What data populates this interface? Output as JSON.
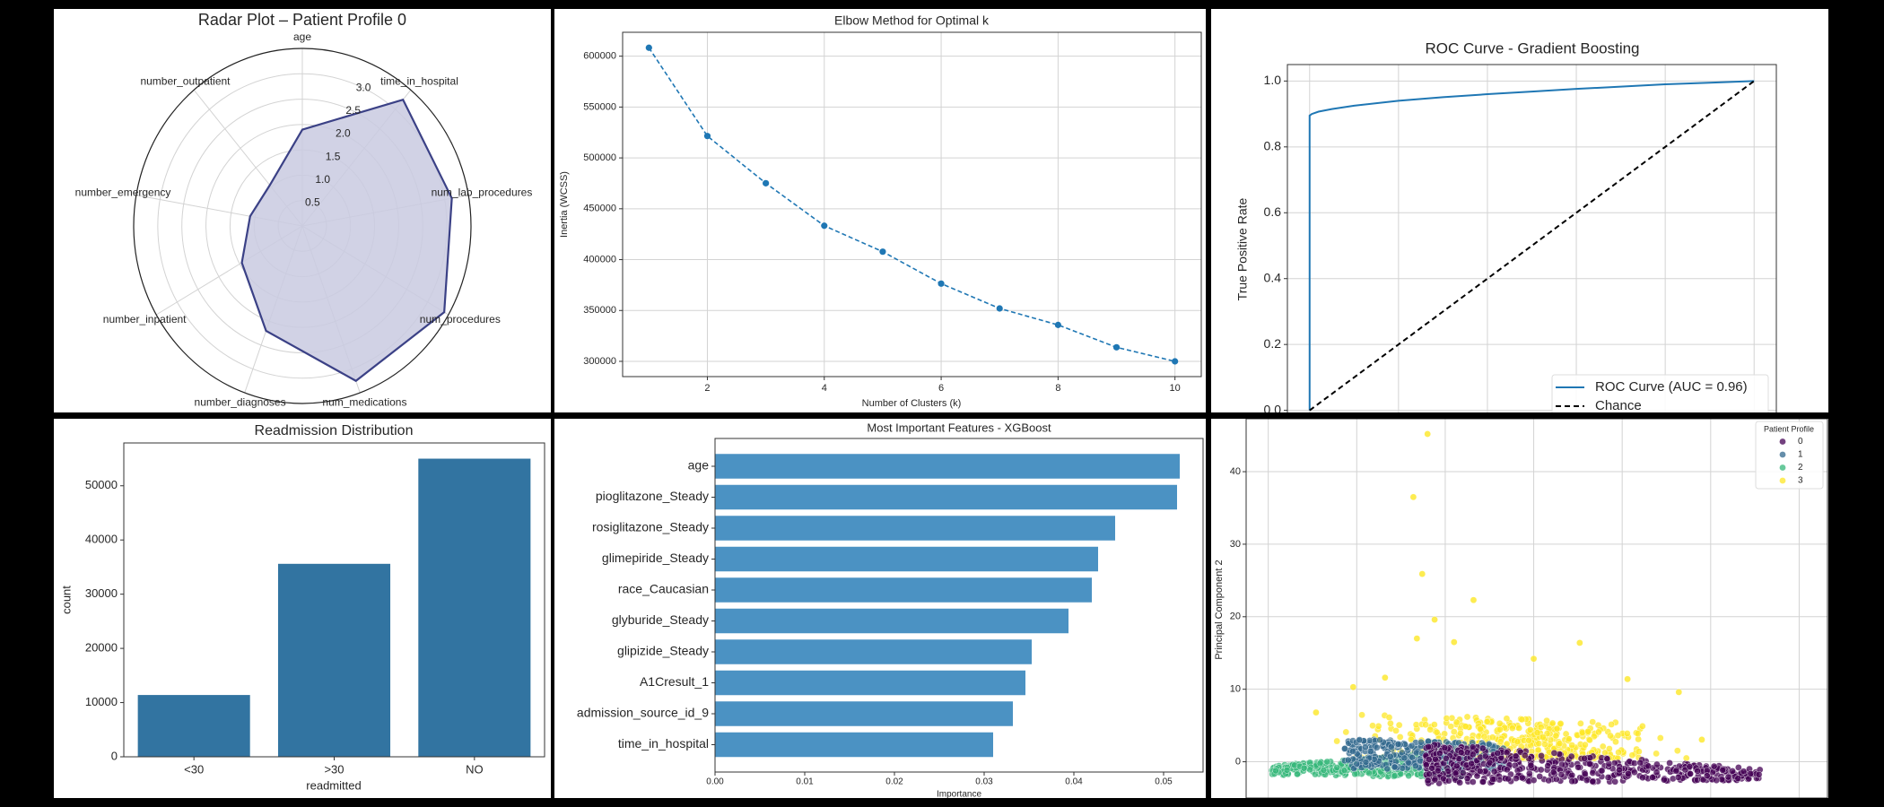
{
  "colors": {
    "background": "#000000",
    "panel": "#ffffff",
    "grid": "#d0d0d0"
  },
  "chart_data": [
    {
      "type": "radar",
      "title": "Radar Plot – Patient Profile 0",
      "axes": [
        "age",
        "time_in_hospital",
        "num_lab_procedures",
        "num_procedures",
        "num_medications",
        "number_diagnoses",
        "number_inpatient",
        "number_emergency",
        "number_outpatient"
      ],
      "values": [
        1.9,
        3.25,
        3.15,
        3.4,
        3.25,
        2.2,
        1.45,
        1.1,
        1.05
      ],
      "r_ticks": [
        "0.5",
        "1.0",
        "1.5",
        "2.0",
        "2.5",
        "3.0"
      ],
      "r_tick_values": [
        0.5,
        1.0,
        1.5,
        2.0,
        2.5,
        3.0
      ],
      "rlim": [
        0,
        3.5
      ],
      "fill_color": "#c9cae0",
      "line_color": "#3b4186"
    },
    {
      "type": "line",
      "title": "Elbow Method for Optimal k",
      "xlabel": "Number of Clusters (k)",
      "ylabel": "Inertia (WCSS)",
      "x": [
        1,
        2,
        3,
        4,
        5,
        6,
        7,
        8,
        9,
        10
      ],
      "y": [
        608300,
        521500,
        475100,
        433300,
        407800,
        376400,
        352000,
        335800,
        313800,
        300000
      ],
      "xticks": [
        "2",
        "4",
        "6",
        "8",
        "10"
      ],
      "xtick_values": [
        2,
        4,
        6,
        8,
        10
      ],
      "yticks": [
        "300000",
        "350000",
        "400000",
        "450000",
        "500000",
        "550000",
        "600000"
      ],
      "ytick_values": [
        300000,
        350000,
        400000,
        450000,
        500000,
        550000,
        600000
      ],
      "xlim": [
        0.55,
        10.45
      ],
      "ylim": [
        285000,
        623500
      ],
      "color": "#1f77b4",
      "line_style": "dashed",
      "marker": "circle",
      "grid": true
    },
    {
      "type": "line",
      "title": "ROC Curve - Gradient Boosting",
      "ylabel": "True Positive Rate",
      "series": [
        {
          "name": "ROC Curve (AUC = 0.96)",
          "color": "#1f77b4",
          "line_style": "solid",
          "x": [
            0,
            0,
            0.005,
            0.02,
            0.05,
            0.1,
            0.2,
            0.3,
            0.4,
            0.5,
            0.6,
            0.7,
            0.8,
            0.9,
            1.0
          ],
          "y": [
            0,
            0.895,
            0.9,
            0.907,
            0.915,
            0.925,
            0.94,
            0.951,
            0.96,
            0.968,
            0.976,
            0.983,
            0.99,
            0.995,
            1.0
          ]
        },
        {
          "name": "Chance",
          "color": "#000000",
          "line_style": "dashed",
          "x": [
            0,
            1
          ],
          "y": [
            0,
            1
          ]
        }
      ],
      "yticks": [
        "0.0",
        "0.2",
        "0.4",
        "0.6",
        "0.8",
        "1.0"
      ],
      "ytick_values": [
        0,
        0.2,
        0.4,
        0.6,
        0.8,
        1.0
      ],
      "xgrid_values": [
        0,
        0.2,
        0.4,
        0.6,
        0.8,
        1.0
      ],
      "xlim": [
        -0.05,
        1.05
      ],
      "ylim": [
        -0.05,
        1.05
      ],
      "legend": "lower-right",
      "grid": true
    },
    {
      "type": "bar",
      "title": "Readmission Distribution",
      "categories": [
        "<30",
        ">30",
        "NO"
      ],
      "values": [
        11400,
        35600,
        55000
      ],
      "xlabel": "readmitted",
      "ylabel": "count",
      "yticks": [
        "0",
        "10000",
        "20000",
        "30000",
        "40000",
        "50000"
      ],
      "ytick_values": [
        0,
        10000,
        20000,
        30000,
        40000,
        50000
      ],
      "ylim": [
        0,
        57900
      ],
      "color": "#3274a1"
    },
    {
      "type": "bar",
      "orientation": "horizontal",
      "title": "Most Important Features - XGBoost",
      "categories": [
        "age",
        "pioglitazone_Steady",
        "rosiglitazone_Steady",
        "glimepiride_Steady",
        "race_Caucasian",
        "glyburide_Steady",
        "glipizide_Steady",
        "A1Cresult_1",
        "admission_source_id_9",
        "time_in_hospital"
      ],
      "values": [
        0.0518,
        0.0515,
        0.0446,
        0.0427,
        0.042,
        0.0394,
        0.0353,
        0.0346,
        0.0332,
        0.031
      ],
      "xlabel": "Importance",
      "xticks": [
        "0.00",
        "0.01",
        "0.02",
        "0.03",
        "0.04",
        "0.05"
      ],
      "xtick_values": [
        0,
        0.01,
        0.02,
        0.03,
        0.04,
        0.05
      ],
      "xlim": [
        0,
        0.0544
      ],
      "color": "#4b92c3"
    },
    {
      "type": "scatter",
      "ylabel": "Principal Component 2",
      "legend_title": "Patient Profile",
      "legend": "top-right",
      "yticks": [
        "0",
        "10",
        "20",
        "30",
        "40"
      ],
      "ytick_values": [
        0,
        10,
        20,
        30,
        40
      ],
      "xgrid_values": [
        -10,
        -5,
        0,
        5,
        10,
        15,
        20
      ],
      "xlim": [
        -11.25,
        21.6
      ],
      "ylim": [
        -5,
        47.3
      ],
      "grid": true,
      "series": [
        {
          "name": "0",
          "color": "#440154",
          "x_range": [
            -1.1,
            17.8
          ],
          "y_range_left": [
            -3.0,
            2.6
          ],
          "y_range_right": [
            -2.6,
            -1.0
          ],
          "count": 520
        },
        {
          "name": "1",
          "color": "#31688e",
          "x_range": [
            -5.7,
            3.3
          ],
          "y_range_left": [
            -1.0,
            3.2
          ],
          "y_range_right": [
            -1.0,
            2.5
          ],
          "count": 330
        },
        {
          "name": "2",
          "color": "#35b779",
          "x_range": [
            -9.8,
            1.0
          ],
          "y_range_left": [
            -1.8,
            -0.5
          ],
          "y_range_right": [
            -2.2,
            1.5
          ],
          "count": 380
        },
        {
          "name": "3",
          "color": "#fde725",
          "x_range": [
            -7.3,
            14.5
          ],
          "y_range_left": [
            0.5,
            7.0
          ],
          "y_range_right": [
            0.5,
            5.0
          ],
          "count": 520,
          "outliers": [
            [
              -1.0,
              45.2
            ],
            [
              -1.8,
              36.5
            ],
            [
              -1.3,
              25.9
            ],
            [
              1.6,
              22.3
            ],
            [
              -0.6,
              19.6
            ],
            [
              7.6,
              16.4
            ],
            [
              -1.6,
              17.0
            ],
            [
              0.5,
              16.5
            ],
            [
              5.0,
              14.2
            ],
            [
              14.5,
              3.05
            ],
            [
              10.3,
              11.4
            ],
            [
              13.2,
              9.6
            ],
            [
              -5.2,
              10.3
            ],
            [
              -7.3,
              6.8
            ],
            [
              -3.4,
              11.6
            ]
          ]
        }
      ]
    }
  ]
}
